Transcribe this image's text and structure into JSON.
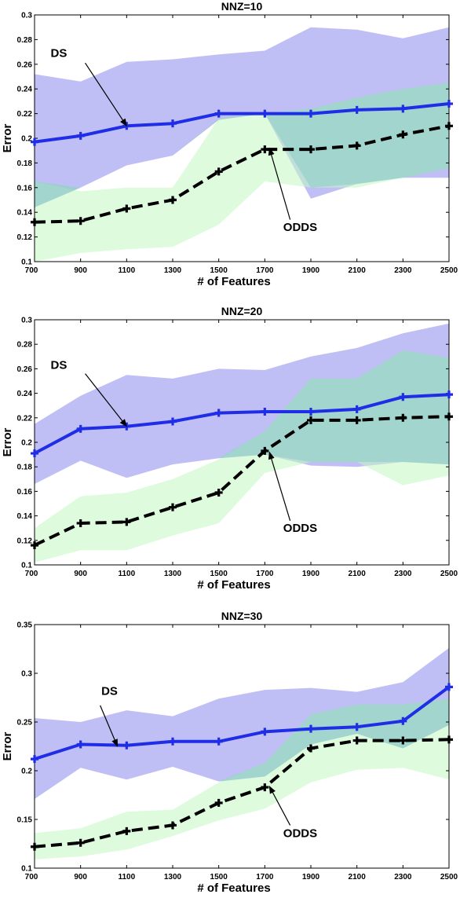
{
  "chart_data": [
    {
      "type": "line",
      "title": "NNZ=10",
      "xlabel": "# of Features",
      "ylabel": "Error",
      "x": [
        700,
        900,
        1100,
        1300,
        1500,
        1700,
        1900,
        2100,
        2300,
        2500
      ],
      "xticks": [
        "700",
        "900",
        "1100",
        "1300",
        "1500",
        "1700",
        "1900",
        "2100",
        "2300",
        "2500"
      ],
      "xlim": [
        700,
        2500
      ],
      "ylim": [
        0.1,
        0.3
      ],
      "yticks": [
        "0.1",
        "0.12",
        "0.14",
        "0.16",
        "0.18",
        "0.2",
        "0.22",
        "0.24",
        "0.26",
        "0.28",
        "0.3"
      ],
      "ytick_values": [
        0.1,
        0.12,
        0.14,
        0.16,
        0.18,
        0.2,
        0.22,
        0.24,
        0.26,
        0.28,
        0.3
      ],
      "series": [
        {
          "name": "DS",
          "color": "#1f2ee6",
          "values": [
            0.197,
            0.202,
            0.21,
            0.212,
            0.22,
            0.22,
            0.22,
            0.223,
            0.224,
            0.228
          ],
          "band_upper": [
            0.252,
            0.246,
            0.262,
            0.264,
            0.268,
            0.271,
            0.29,
            0.288,
            0.281,
            0.29
          ],
          "band_lower": [
            0.144,
            0.16,
            0.178,
            0.186,
            0.215,
            0.22,
            0.151,
            0.163,
            0.168,
            0.168
          ],
          "band_color": "#c0bff5"
        },
        {
          "name": "ODDS",
          "color": "#000000",
          "values": [
            0.132,
            0.133,
            0.143,
            0.15,
            0.173,
            0.191,
            0.191,
            0.194,
            0.203,
            0.21
          ],
          "band_upper": [
            0.165,
            0.157,
            0.16,
            0.16,
            0.216,
            0.22,
            0.224,
            0.233,
            0.24,
            0.245
          ],
          "band_lower": [
            0.1,
            0.107,
            0.11,
            0.112,
            0.13,
            0.165,
            0.16,
            0.16,
            0.168,
            0.176
          ],
          "band_color": "#c3f8c3"
        }
      ],
      "annotations": [
        {
          "text": "DS",
          "label_x": 770,
          "label_y": 0.266,
          "arrow_from": [
            920,
            0.261
          ],
          "arrow_to": [
            1100,
            0.21
          ]
        },
        {
          "text": "ODDS",
          "label_x": 1780,
          "label_y": 0.125,
          "arrow_from": [
            1810,
            0.134
          ],
          "arrow_to": [
            1720,
            0.192
          ]
        }
      ]
    },
    {
      "type": "line",
      "title": "NNZ=20",
      "xlabel": "# of Features",
      "ylabel": "Error",
      "x": [
        700,
        900,
        1100,
        1300,
        1500,
        1700,
        1900,
        2100,
        2300,
        2500
      ],
      "xticks": [
        "700",
        "900",
        "1100",
        "1300",
        "1500",
        "1700",
        "1900",
        "2100",
        "2300",
        "2500"
      ],
      "xlim": [
        700,
        2500
      ],
      "ylim": [
        0.1,
        0.3
      ],
      "yticks": [
        "0.1",
        "0.12",
        "0.14",
        "0.16",
        "0.18",
        "0.2",
        "0.22",
        "0.24",
        "0.26",
        "0.28",
        "0.3"
      ],
      "ytick_values": [
        0.1,
        0.12,
        0.14,
        0.16,
        0.18,
        0.2,
        0.22,
        0.24,
        0.26,
        0.28,
        0.3
      ],
      "series": [
        {
          "name": "DS",
          "color": "#1f2ee6",
          "values": [
            0.191,
            0.211,
            0.213,
            0.217,
            0.224,
            0.225,
            0.225,
            0.227,
            0.237,
            0.239
          ],
          "band_upper": [
            0.215,
            0.238,
            0.255,
            0.252,
            0.26,
            0.259,
            0.27,
            0.277,
            0.289,
            0.297
          ],
          "band_lower": [
            0.166,
            0.185,
            0.171,
            0.182,
            0.187,
            0.19,
            0.181,
            0.18,
            0.184,
            0.182
          ],
          "band_color": "#c0bff5"
        },
        {
          "name": "ODDS",
          "color": "#000000",
          "values": [
            0.116,
            0.134,
            0.135,
            0.147,
            0.159,
            0.193,
            0.218,
            0.218,
            0.22,
            0.221
          ],
          "band_upper": [
            0.13,
            0.156,
            0.159,
            0.17,
            0.186,
            0.209,
            0.252,
            0.252,
            0.275,
            0.269
          ],
          "band_lower": [
            0.102,
            0.112,
            0.112,
            0.124,
            0.134,
            0.175,
            0.184,
            0.184,
            0.165,
            0.173
          ],
          "band_color": "#c3f8c3"
        }
      ],
      "annotations": [
        {
          "text": "DS",
          "label_x": 770,
          "label_y": 0.26,
          "arrow_from": [
            920,
            0.256
          ],
          "arrow_to": [
            1100,
            0.213
          ]
        },
        {
          "text": "ODDS",
          "label_x": 1780,
          "label_y": 0.127,
          "arrow_from": [
            1810,
            0.136
          ],
          "arrow_to": [
            1720,
            0.192
          ]
        }
      ]
    },
    {
      "type": "line",
      "title": "NNZ=30",
      "xlabel": "# of Features",
      "ylabel": "Error",
      "x": [
        700,
        900,
        1100,
        1300,
        1500,
        1700,
        1900,
        2100,
        2300,
        2500
      ],
      "xticks": [
        "700",
        "900",
        "1100",
        "1300",
        "1500",
        "1700",
        "1900",
        "2100",
        "2300",
        "2500"
      ],
      "xlim": [
        700,
        2500
      ],
      "ylim": [
        0.1,
        0.35
      ],
      "yticks": [
        "0.1",
        "0.15",
        "0.2",
        "0.25",
        "0.3",
        "0.35"
      ],
      "ytick_values": [
        0.1,
        0.15,
        0.2,
        0.25,
        0.3,
        0.35
      ],
      "series": [
        {
          "name": "DS",
          "color": "#1f2ee6",
          "values": [
            0.212,
            0.227,
            0.226,
            0.23,
            0.23,
            0.24,
            0.243,
            0.245,
            0.251,
            0.286
          ],
          "band_upper": [
            0.254,
            0.25,
            0.262,
            0.256,
            0.274,
            0.283,
            0.285,
            0.281,
            0.291,
            0.326
          ],
          "band_lower": [
            0.171,
            0.203,
            0.191,
            0.204,
            0.189,
            0.194,
            0.227,
            0.238,
            0.223,
            0.247
          ],
          "band_color": "#c0bff5"
        },
        {
          "name": "ODDS",
          "color": "#000000",
          "values": [
            0.122,
            0.126,
            0.138,
            0.144,
            0.167,
            0.183,
            0.223,
            0.231,
            0.231,
            0.232
          ],
          "band_upper": [
            0.136,
            0.141,
            0.158,
            0.16,
            0.188,
            0.208,
            0.258,
            0.268,
            0.268,
            0.274
          ],
          "band_lower": [
            0.109,
            0.112,
            0.119,
            0.133,
            0.149,
            0.161,
            0.188,
            0.201,
            0.203,
            0.191
          ],
          "band_color": "#c3f8c3"
        }
      ],
      "annotations": [
        {
          "text": "DS",
          "label_x": 990,
          "label_y": 0.278,
          "arrow_from": [
            985,
            0.267
          ],
          "arrow_to": [
            1060,
            0.225
          ]
        },
        {
          "text": "ODDS",
          "label_x": 1780,
          "label_y": 0.132,
          "arrow_from": [
            1810,
            0.144
          ],
          "arrow_to": [
            1720,
            0.184
          ]
        }
      ]
    }
  ]
}
